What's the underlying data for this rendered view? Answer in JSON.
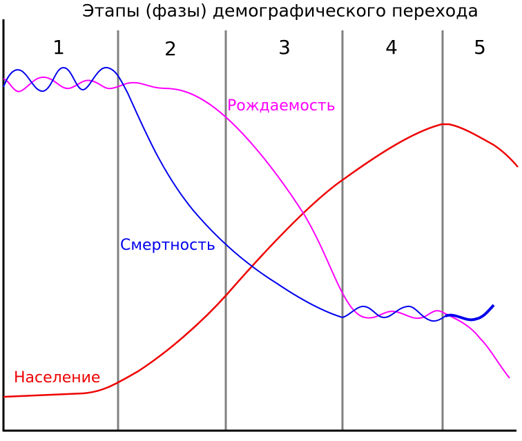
{
  "title": "Этапы (фазы) демографического перехода",
  "stages": [
    "1",
    "2",
    "3",
    "4",
    "5"
  ],
  "series": {
    "birth_rate": {
      "name": "Рождаемость",
      "color": "#ff00ff"
    },
    "death_rate": {
      "name": "Смертность",
      "color": "#0000ee"
    },
    "population": {
      "name": "Население",
      "color": "#ee0000"
    }
  },
  "colors": {
    "axis": "#000000",
    "divider": "#808080",
    "background": "#ffffff"
  }
}
